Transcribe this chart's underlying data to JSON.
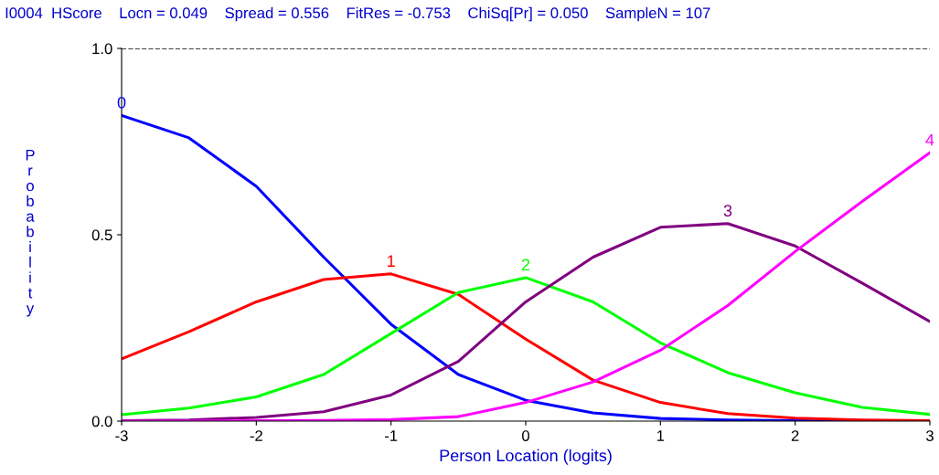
{
  "chart_data": {
    "type": "line",
    "title": "I0004  HScore    Locn = 0.049    Spread = 0.556    FitRes = -0.753    ChiSq[Pr] = 0.050    SampleN = 107",
    "xlabel": "Person Location (logits)",
    "ylabel": "Probability",
    "x": [
      -3,
      -2.5,
      -2,
      -1.5,
      -1,
      -0.5,
      0,
      0.5,
      1,
      1.5,
      2,
      2.5,
      3
    ],
    "series": [
      {
        "color": "#0000ff",
        "values": [
          0.82,
          0.76,
          0.63,
          0.44,
          0.26,
          0.125,
          0.056,
          0.022,
          0.007,
          0.003,
          0.001,
          0,
          0
        ]
      },
      {
        "color": "#ff0000",
        "values": [
          0.167,
          0.24,
          0.32,
          0.38,
          0.395,
          0.34,
          0.22,
          0.11,
          0.05,
          0.02,
          0.008,
          0.003,
          0.001
        ]
      },
      {
        "color": "#00ff00",
        "values": [
          0.017,
          0.035,
          0.065,
          0.125,
          0.235,
          0.345,
          0.385,
          0.32,
          0.21,
          0.13,
          0.076,
          0.037,
          0.018
        ]
      },
      {
        "color": "#800080",
        "values": [
          0.001,
          0.003,
          0.01,
          0.025,
          0.07,
          0.16,
          0.32,
          0.44,
          0.52,
          0.53,
          0.47,
          0.37,
          0.267
        ]
      },
      {
        "color": "#ff00ff",
        "values": [
          0,
          0,
          0.001,
          0.002,
          0.004,
          0.012,
          0.05,
          0.105,
          0.19,
          0.31,
          0.455,
          0.59,
          0.72
        ]
      }
    ],
    "annotations": [
      {
        "text": "0",
        "x": -3,
        "y": 0.82
      },
      {
        "text": "1",
        "x": -1,
        "y": 0.395
      },
      {
        "text": "2",
        "x": 0,
        "y": 0.385
      },
      {
        "text": "3",
        "x": 1.5,
        "y": 0.53
      },
      {
        "text": "4",
        "x": 3,
        "y": 0.72
      }
    ],
    "ref_lines": [
      {
        "axis": "y",
        "value": 1.0,
        "color": "#000000",
        "line_style": "dashed"
      }
    ],
    "xlim": [
      -3,
      3
    ],
    "ylim": [
      0,
      1
    ],
    "xticks": [
      -3,
      -2,
      -1,
      0,
      1,
      2,
      3
    ],
    "yticks": [
      {
        "value": 0,
        "label": "0.0"
      },
      {
        "value": 0.5,
        "label": "0.5"
      },
      {
        "value": 1,
        "label": "1.0"
      }
    ],
    "grid": false,
    "legend": false,
    "marker": "none",
    "line_style": "solid"
  }
}
